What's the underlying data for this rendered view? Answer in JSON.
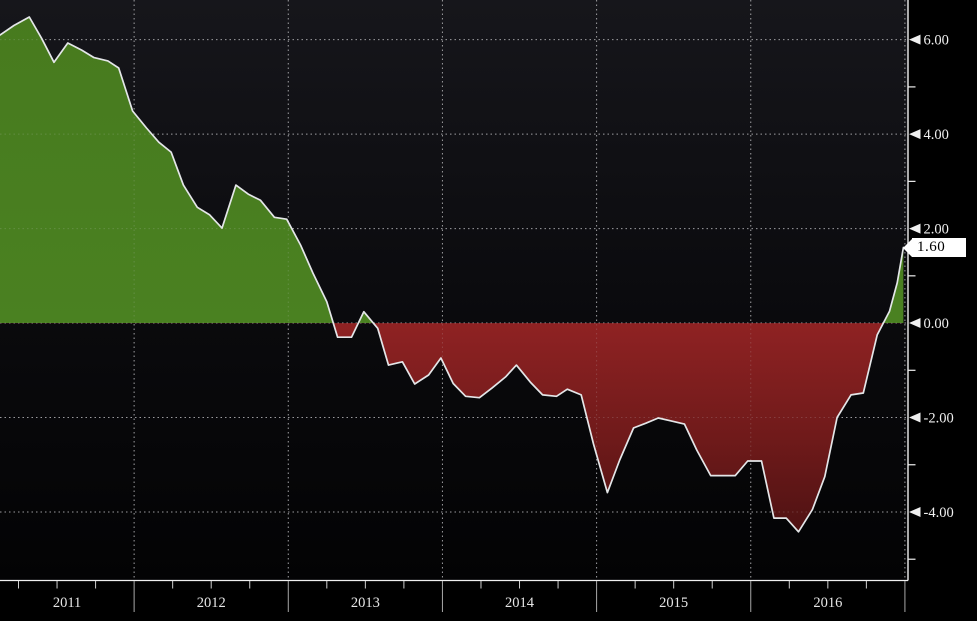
{
  "chart_data": {
    "type": "area",
    "title": "",
    "xlabel": "",
    "ylabel": "",
    "xlim": [
      2011.13,
      2017.02
    ],
    "ylim": [
      -5.44,
      6.84
    ],
    "grid": "dashed",
    "legend": "none",
    "last_price": {
      "label": "1.60",
      "value": 1.6
    },
    "y_axis": {
      "side": "right",
      "major_ticks": [
        {
          "value": 6,
          "label": "6.00"
        },
        {
          "value": 4,
          "label": "4.00"
        },
        {
          "value": 2,
          "label": "2.00"
        },
        {
          "value": 0,
          "label": "0.00"
        },
        {
          "value": -2,
          "label": "-2.00"
        },
        {
          "value": -4,
          "label": "-4.00"
        }
      ],
      "minor_tick_values": [
        5,
        3,
        1,
        -1,
        -3,
        -5
      ]
    },
    "x_axis": {
      "side": "bottom",
      "year_labels": [
        {
          "label": "2011",
          "start": 2011,
          "end": 2012
        },
        {
          "label": "2012",
          "start": 2012,
          "end": 2013
        },
        {
          "label": "2013",
          "start": 2013,
          "end": 2014
        },
        {
          "label": "2014",
          "start": 2014,
          "end": 2015
        },
        {
          "label": "2015",
          "start": 2015,
          "end": 2016
        },
        {
          "label": "2016",
          "start": 2016,
          "end": 2017
        }
      ],
      "year_boundaries": [
        2012,
        2013,
        2014,
        2015,
        2016,
        2017
      ],
      "minor_tick_interval_years": 0.25
    },
    "series": [
      {
        "points": [
          [
            2011.13,
            6.1
          ],
          [
            2011.22,
            6.3
          ],
          [
            2011.32,
            6.48
          ],
          [
            2011.4,
            6.03
          ],
          [
            2011.48,
            5.52
          ],
          [
            2011.57,
            5.93
          ],
          [
            2011.66,
            5.78
          ],
          [
            2011.74,
            5.62
          ],
          [
            2011.83,
            5.55
          ],
          [
            2011.9,
            5.4
          ],
          [
            2011.99,
            4.49
          ],
          [
            2012.08,
            4.13
          ],
          [
            2012.16,
            3.83
          ],
          [
            2012.24,
            3.62
          ],
          [
            2012.32,
            2.92
          ],
          [
            2012.41,
            2.45
          ],
          [
            2012.49,
            2.29
          ],
          [
            2012.57,
            2.01
          ],
          [
            2012.66,
            2.92
          ],
          [
            2012.74,
            2.73
          ],
          [
            2012.82,
            2.6
          ],
          [
            2012.91,
            2.24
          ],
          [
            2012.99,
            2.2
          ],
          [
            2013.08,
            1.65
          ],
          [
            2013.16,
            1.06
          ],
          [
            2013.25,
            0.45
          ],
          [
            2013.32,
            -0.3
          ],
          [
            2013.41,
            -0.3
          ],
          [
            2013.49,
            0.24
          ],
          [
            2013.58,
            -0.11
          ],
          [
            2013.65,
            -0.89
          ],
          [
            2013.74,
            -0.82
          ],
          [
            2013.82,
            -1.29
          ],
          [
            2013.91,
            -1.1
          ],
          [
            2013.99,
            -0.74
          ],
          [
            2014.07,
            -1.28
          ],
          [
            2014.15,
            -1.55
          ],
          [
            2014.24,
            -1.58
          ],
          [
            2014.32,
            -1.38
          ],
          [
            2014.41,
            -1.14
          ],
          [
            2014.48,
            -0.89
          ],
          [
            2014.57,
            -1.25
          ],
          [
            2014.65,
            -1.52
          ],
          [
            2014.74,
            -1.55
          ],
          [
            2014.81,
            -1.4
          ],
          [
            2014.9,
            -1.52
          ],
          [
            2014.98,
            -2.56
          ],
          [
            2015.07,
            -3.59
          ],
          [
            2015.15,
            -2.9
          ],
          [
            2015.24,
            -2.22
          ],
          [
            2015.32,
            -2.12
          ],
          [
            2015.4,
            -2.01
          ],
          [
            2015.48,
            -2.07
          ],
          [
            2015.57,
            -2.14
          ],
          [
            2015.65,
            -2.69
          ],
          [
            2015.74,
            -3.23
          ],
          [
            2015.82,
            -3.23
          ],
          [
            2015.9,
            -3.23
          ],
          [
            2015.98,
            -2.92
          ],
          [
            2016.07,
            -2.92
          ],
          [
            2016.15,
            -4.13
          ],
          [
            2016.23,
            -4.13
          ],
          [
            2016.31,
            -4.42
          ],
          [
            2016.4,
            -3.95
          ],
          [
            2016.48,
            -3.25
          ],
          [
            2016.56,
            -2.0
          ],
          [
            2016.65,
            -1.52
          ],
          [
            2016.73,
            -1.48
          ],
          [
            2016.82,
            -0.25
          ],
          [
            2016.9,
            0.25
          ],
          [
            2016.95,
            0.85
          ],
          [
            2016.99,
            1.6
          ]
        ]
      }
    ],
    "colors": {
      "background_top": "#16161b",
      "background_mid": "#0a0a0d",
      "background_bottom": "#030304",
      "positive_fill_top": "#477a1e",
      "positive_fill_bottom": "#4a8121",
      "negative_fill_top": "#8f2223",
      "negative_fill_mid": "#6f1a1a",
      "negative_fill_bottom": "#471011",
      "line": "#e4e6e8",
      "grid": "#8f8f92",
      "grid_over_fill": "rgba(205,205,208,0.20)",
      "axis": "#f0f0f0",
      "tick_label": "#f0f0f0",
      "year_separator": "#a8a8a8",
      "badge_bg": "#ffffff",
      "badge_text": "#000000"
    }
  }
}
